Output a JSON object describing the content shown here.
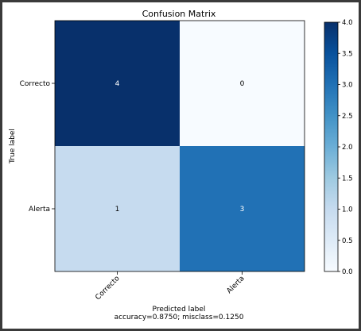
{
  "chart_data": {
    "type": "heatmap",
    "title": "Confusion Matrix",
    "xlabel": "Predicted label",
    "xlabel_sub": "accuracy=0.8750; misclass=0.1250",
    "ylabel": "True label",
    "x_categories": [
      "Correcto",
      "Alerta"
    ],
    "y_categories": [
      "Correcto",
      "Alerta"
    ],
    "matrix": [
      [
        4,
        0
      ],
      [
        1,
        3
      ]
    ],
    "colormap": "Blues",
    "vmin": 0,
    "vmax": 4,
    "colorbar_ticks": [
      "0.0",
      "0.5",
      "1.0",
      "1.5",
      "2.0",
      "2.5",
      "3.0",
      "3.5",
      "4.0"
    ],
    "grid": false
  }
}
